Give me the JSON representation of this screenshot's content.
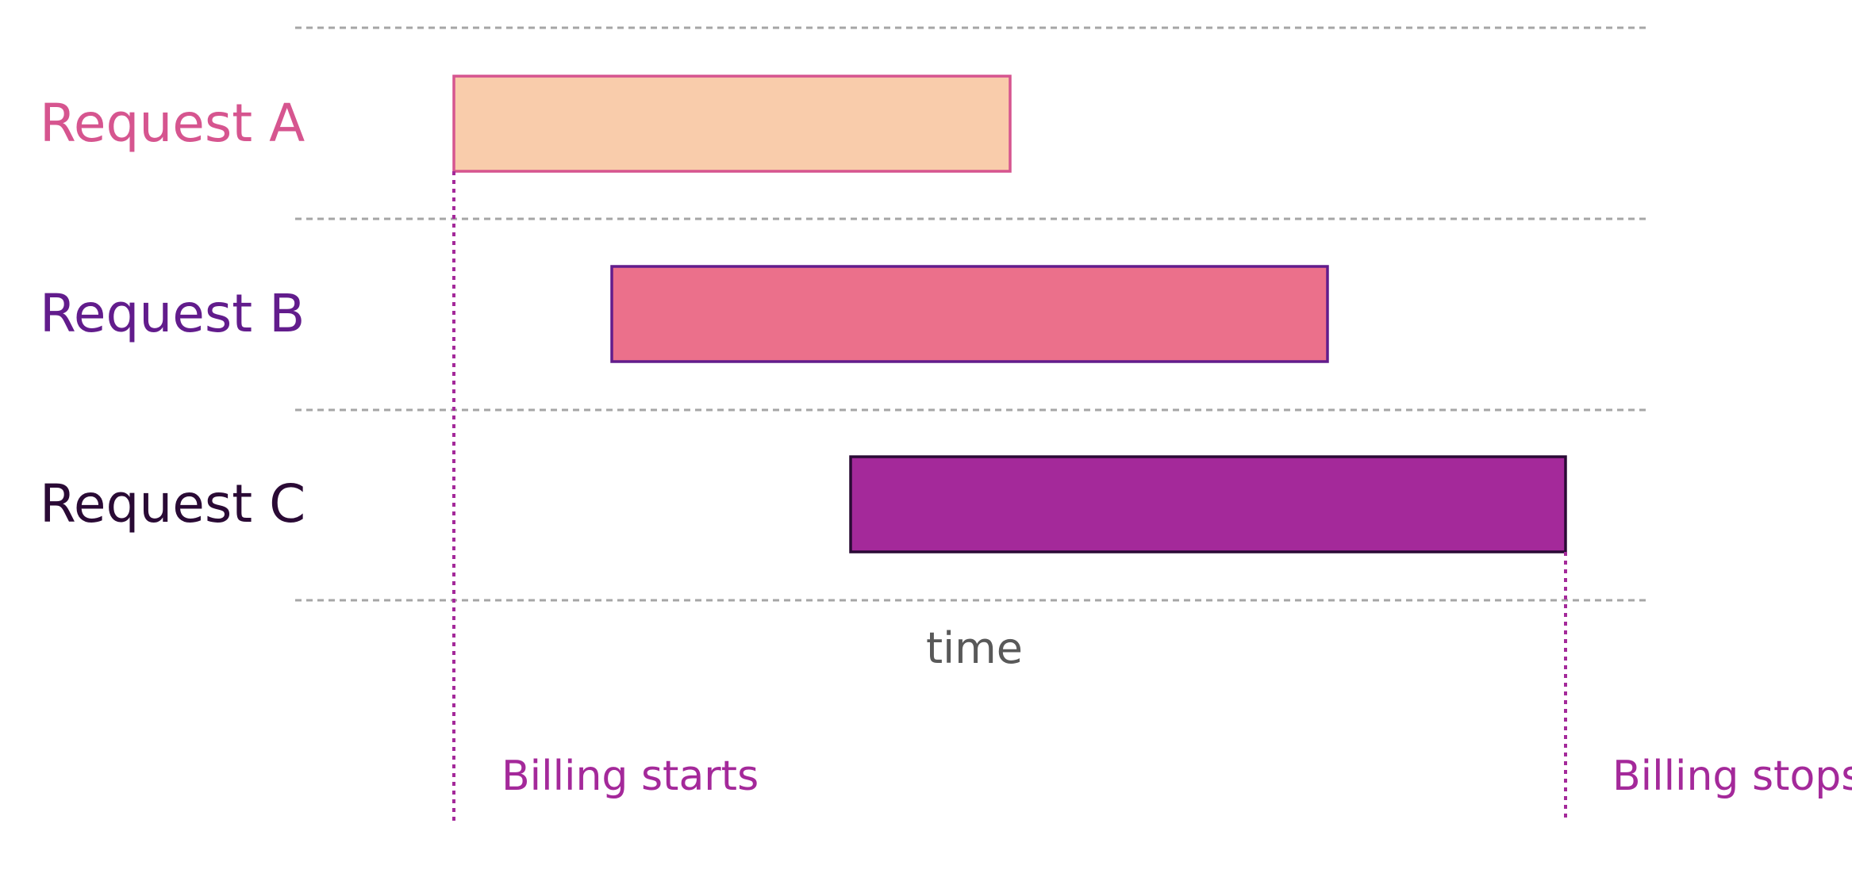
{
  "diagram": {
    "axis_label": "time",
    "billing_start_label": "Billing starts",
    "billing_stop_label": "Billing stops",
    "colors": {
      "separator": "#a6a6a6",
      "billing": "#a4299a",
      "axis_text": "#595959"
    },
    "requests": [
      {
        "label": "Request A",
        "label_color": "#d6558f",
        "fill": "#f9ccab",
        "stroke": "#d6558f"
      },
      {
        "label": "Request B",
        "label_color": "#621c8c",
        "fill": "#eb708b",
        "stroke": "#621c8c"
      },
      {
        "label": "Request C",
        "label_color": "#2a0a35",
        "fill": "#a4299a",
        "stroke": "#2a0a35"
      }
    ]
  }
}
